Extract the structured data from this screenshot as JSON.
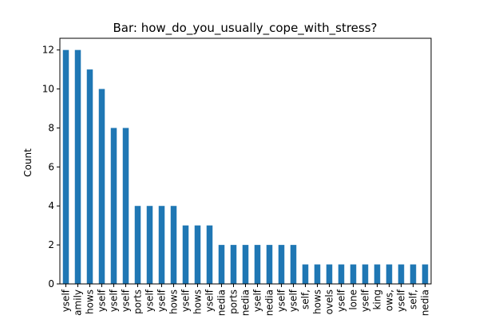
{
  "chart_data": {
    "type": "bar",
    "title": "Bar: how_do_you_usually_cope_with_stress?",
    "xlabel": "",
    "ylabel": "Count",
    "ylim": [
      0,
      12.6
    ],
    "yticks": [
      0,
      2,
      4,
      6,
      8,
      10,
      12
    ],
    "grid": false,
    "legend": "none",
    "bar_color": "#1f77b4",
    "categories": [
      "yself",
      "amily",
      "hows",
      "yself",
      "yself",
      "yself",
      "ports",
      "yself",
      "yself",
      "hows",
      "yself",
      "hows",
      "yself",
      "nedia",
      "ports",
      "nedia",
      "yself",
      "nedia",
      "yself",
      "yself",
      "self,",
      "hows",
      "ovels",
      "yself",
      "lone",
      "yself",
      "king",
      "ows,",
      "yself",
      "self,",
      "nedia"
    ],
    "values": [
      12,
      12,
      11,
      10,
      8,
      8,
      4,
      4,
      4,
      4,
      3,
      3,
      3,
      2,
      2,
      2,
      2,
      2,
      2,
      2,
      1,
      1,
      1,
      1,
      1,
      1,
      1,
      1,
      1,
      1,
      1
    ]
  }
}
